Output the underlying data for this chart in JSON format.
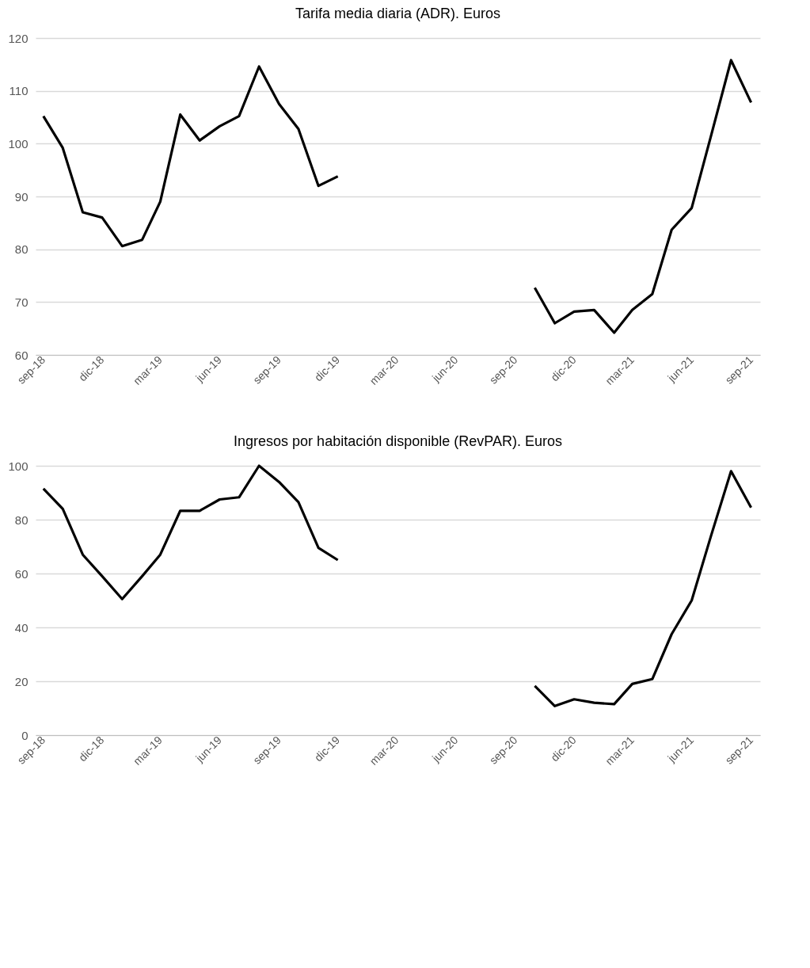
{
  "chart_data": [
    {
      "type": "line",
      "title": "Tarifa media diaria (ADR). Euros",
      "x": [
        "2018-09",
        "2018-10",
        "2018-11",
        "2018-12",
        "2019-01",
        "2019-02",
        "2019-03",
        "2019-04",
        "2019-05",
        "2019-06",
        "2019-07",
        "2019-08",
        "2019-09",
        "2019-10",
        "2019-11",
        "2019-12",
        "2020-01",
        "2020-02",
        "2020-03",
        "2020-04",
        "2020-05",
        "2020-06",
        "2020-07",
        "2020-08",
        "2020-09",
        "2020-10",
        "2020-11",
        "2020-12",
        "2021-01",
        "2021-02",
        "2021-03",
        "2021-04",
        "2021-05",
        "2021-06",
        "2021-07",
        "2021-08",
        "2021-09"
      ],
      "series": [
        {
          "color": "#000000",
          "values": [
            105.2,
            99.2,
            87,
            86,
            80.6,
            81.8,
            89,
            105.5,
            100.6,
            103.3,
            105.2,
            114.6,
            107.5,
            102.8,
            92,
            93.8,
            null,
            null,
            null,
            null,
            null,
            null,
            null,
            null,
            null,
            72.7,
            66,
            68.2,
            68.5,
            64.2,
            68.5,
            71.5,
            83.7,
            87.8,
            101.5,
            115.8,
            107.8
          ]
        }
      ],
      "xlim": [
        "2018-08-20",
        "2021-09-15"
      ],
      "xticks": [
        {
          "value": "2018-09",
          "label": "sep-18"
        },
        {
          "value": "2018-12",
          "label": "dic-18"
        },
        {
          "value": "2019-03",
          "label": "mar-19"
        },
        {
          "value": "2019-06",
          "label": "jun-19"
        },
        {
          "value": "2019-09",
          "label": "sep-19"
        },
        {
          "value": "2019-12",
          "label": "dic-19"
        },
        {
          "value": "2020-03",
          "label": "mar-20"
        },
        {
          "value": "2020-06",
          "label": "jun-20"
        },
        {
          "value": "2020-09",
          "label": "sep-20"
        },
        {
          "value": "2020-12",
          "label": "dic-20"
        },
        {
          "value": "2021-03",
          "label": "mar-21"
        },
        {
          "value": "2021-06",
          "label": "jun-21"
        },
        {
          "value": "2021-09",
          "label": "sep-21"
        }
      ],
      "ylim": [
        60,
        120
      ],
      "yticks": [
        60,
        70,
        80,
        90,
        100,
        110,
        120
      ],
      "grid": "y",
      "marker": "none",
      "line_style": "solid"
    },
    {
      "type": "line",
      "title": "Ingresos por habitación disponible (RevPAR). Euros",
      "x": [
        "2018-09",
        "2018-10",
        "2018-11",
        "2018-12",
        "2019-01",
        "2019-02",
        "2019-03",
        "2019-04",
        "2019-05",
        "2019-06",
        "2019-07",
        "2019-08",
        "2019-09",
        "2019-10",
        "2019-11",
        "2019-12",
        "2020-01",
        "2020-02",
        "2020-03",
        "2020-04",
        "2020-05",
        "2020-06",
        "2020-07",
        "2020-08",
        "2020-09",
        "2020-10",
        "2020-11",
        "2020-12",
        "2021-01",
        "2021-02",
        "2021-03",
        "2021-04",
        "2021-05",
        "2021-06",
        "2021-07",
        "2021-08",
        "2021-09"
      ],
      "series": [
        {
          "color": "#000000",
          "values": [
            91.5,
            84,
            67,
            59,
            50.5,
            59,
            67,
            83.3,
            83.3,
            87.5,
            88.3,
            100,
            94,
            86.5,
            69.5,
            65,
            null,
            null,
            null,
            null,
            null,
            null,
            null,
            null,
            null,
            18.3,
            10.8,
            13.3,
            12,
            11.5,
            19,
            20.8,
            37.5,
            50,
            74,
            98,
            84.5
          ]
        }
      ],
      "xlim": [
        "2018-08-20",
        "2021-09-15"
      ],
      "xticks": [
        {
          "value": "2018-09",
          "label": "sep-18"
        },
        {
          "value": "2018-12",
          "label": "dic-18"
        },
        {
          "value": "2019-03",
          "label": "mar-19"
        },
        {
          "value": "2019-06",
          "label": "jun-19"
        },
        {
          "value": "2019-09",
          "label": "sep-19"
        },
        {
          "value": "2019-12",
          "label": "dic-19"
        },
        {
          "value": "2020-03",
          "label": "mar-20"
        },
        {
          "value": "2020-06",
          "label": "jun-20"
        },
        {
          "value": "2020-09",
          "label": "sep-20"
        },
        {
          "value": "2020-12",
          "label": "dic-20"
        },
        {
          "value": "2021-03",
          "label": "mar-21"
        },
        {
          "value": "2021-06",
          "label": "jun-21"
        },
        {
          "value": "2021-09",
          "label": "sep-21"
        }
      ],
      "ylim": [
        0,
        100
      ],
      "yticks": [
        0,
        20,
        40,
        60,
        80,
        100
      ],
      "grid": "y",
      "marker": "none",
      "line_style": "solid"
    }
  ]
}
